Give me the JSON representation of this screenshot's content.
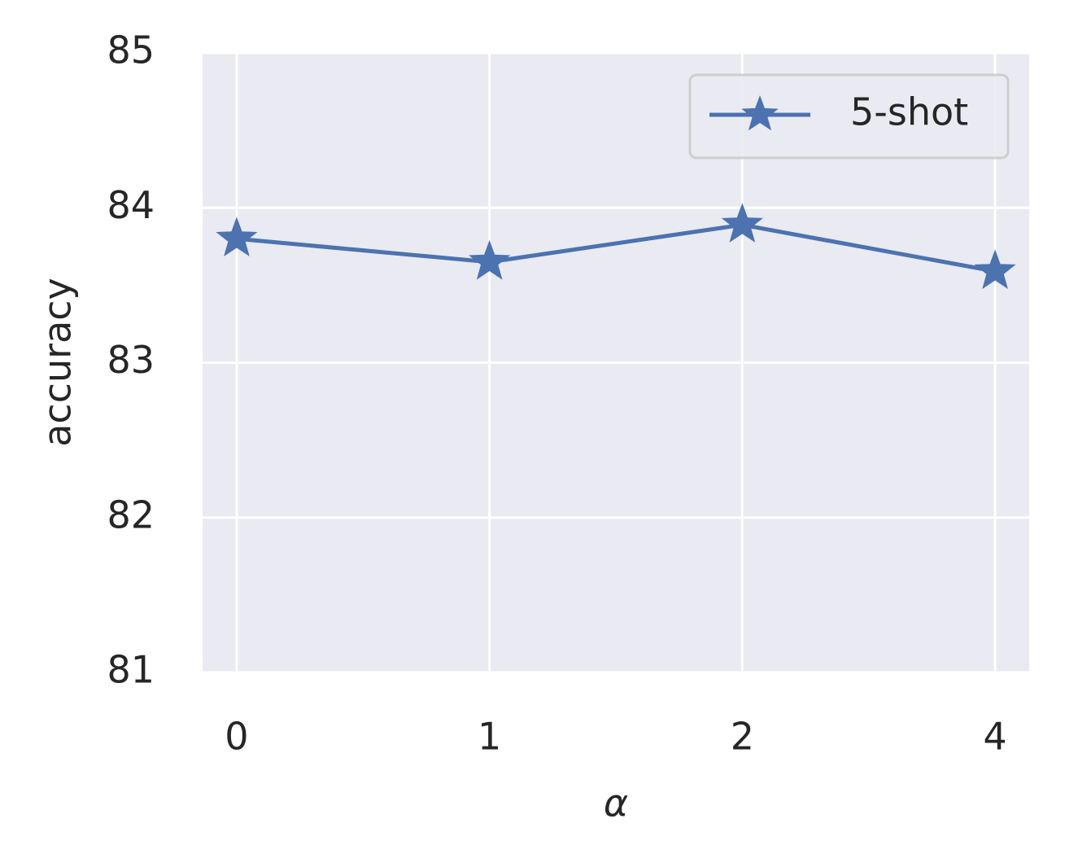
{
  "chart_data": {
    "type": "line",
    "x_label": "α",
    "y_label": "accuracy",
    "categories": [
      "0",
      "1",
      "2",
      "4"
    ],
    "series": [
      {
        "name": "5-shot",
        "color": "#4c72b0",
        "marker": "star",
        "values": [
          83.8,
          83.65,
          83.89,
          83.59
        ]
      }
    ],
    "ylim": [
      81,
      85
    ],
    "yticks": [
      81,
      82,
      83,
      84,
      85
    ],
    "grid": true,
    "legend": "upper right"
  }
}
